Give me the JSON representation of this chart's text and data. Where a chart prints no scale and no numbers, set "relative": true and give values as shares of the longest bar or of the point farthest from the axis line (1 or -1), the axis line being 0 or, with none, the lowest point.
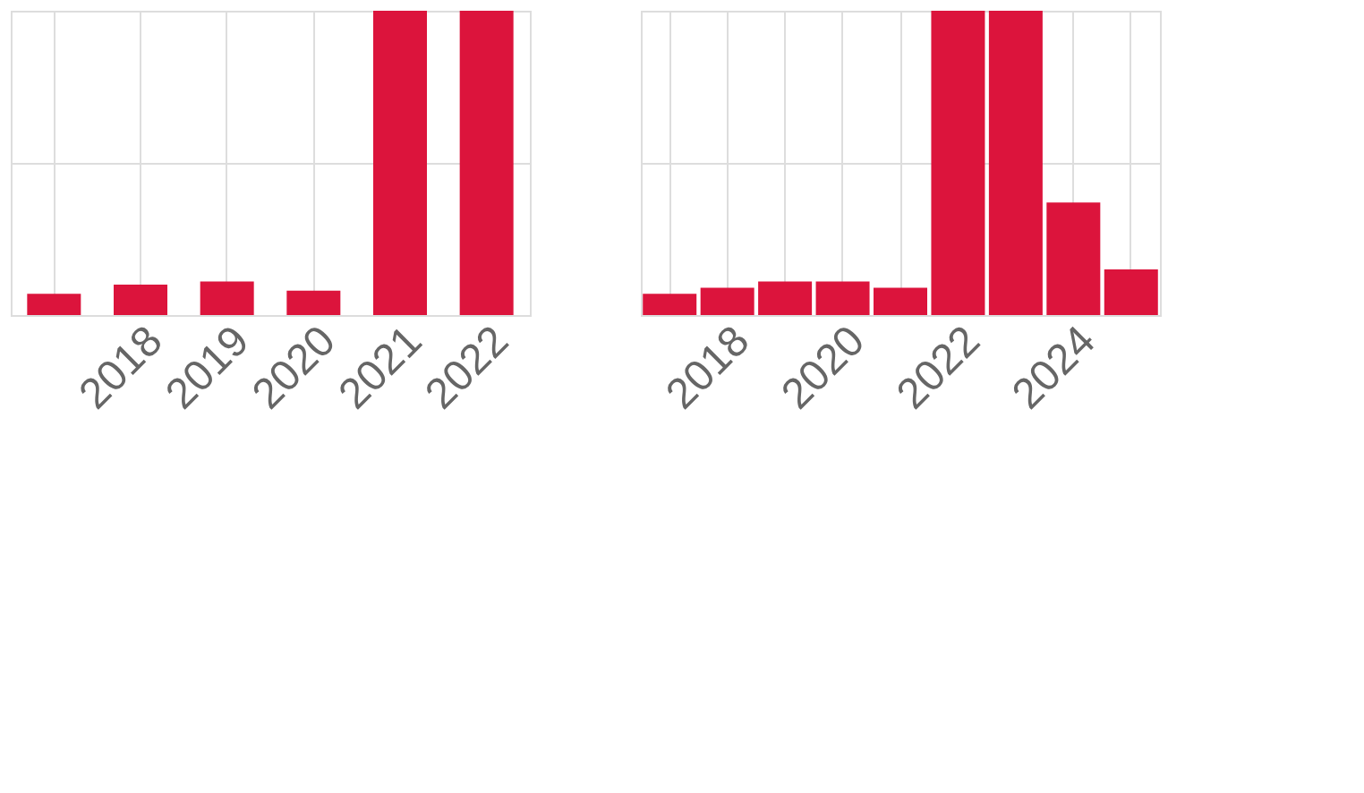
{
  "chart_data": [
    {
      "type": "bar",
      "relative": true,
      "grid": true,
      "color": "#dc143c",
      "categories": [
        null,
        "2018",
        "2019",
        "2020",
        "2021",
        "2022"
      ],
      "values": [
        0.07,
        0.1,
        0.11,
        0.08,
        1,
        1
      ]
    },
    {
      "type": "bar",
      "relative": true,
      "grid": true,
      "color": "#dc143c",
      "categories": [
        null,
        "2018",
        null,
        "2020",
        null,
        "2022",
        null,
        "2024",
        null
      ],
      "values": [
        0.07,
        0.09,
        0.11,
        0.11,
        0.09,
        1,
        1,
        0.37,
        0.15
      ]
    }
  ]
}
